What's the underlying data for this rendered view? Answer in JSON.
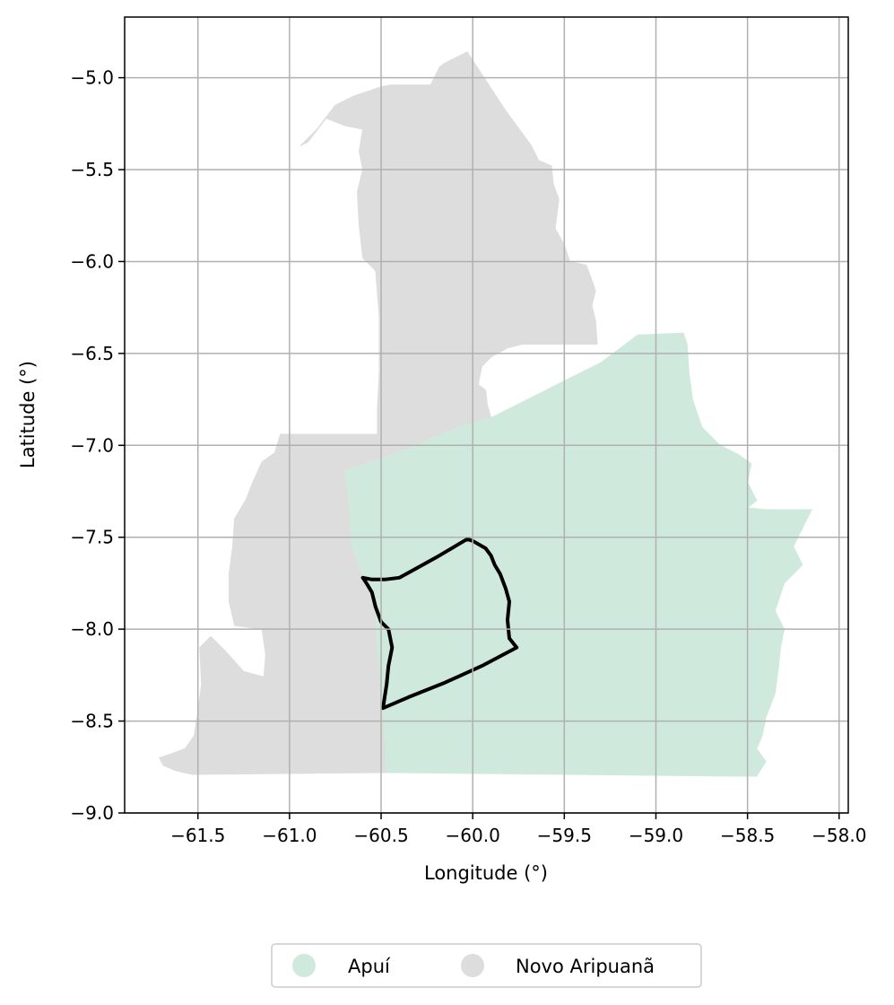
{
  "chart_data": {
    "type": "map",
    "title": "",
    "xlabel": "Longitude (°)",
    "ylabel": "Latitude (°)",
    "xlim": [
      -61.9,
      -57.95
    ],
    "ylim": [
      -9.0,
      -4.67
    ],
    "xticks": [
      -61.5,
      -61.0,
      -60.5,
      -60.0,
      -59.5,
      -59.0,
      -58.5,
      -58.0
    ],
    "xtick_labels": [
      "−61.5",
      "−61.0",
      "−60.5",
      "−60.0",
      "−59.5",
      "−59.0",
      "−58.5",
      "−58.0"
    ],
    "yticks": [
      -5.0,
      -5.5,
      -6.0,
      -6.5,
      -7.0,
      -7.5,
      -8.0,
      -8.5,
      -9.0
    ],
    "ytick_labels": [
      "−5.0",
      "−5.5",
      "−6.0",
      "−6.5",
      "−7.0",
      "−7.5",
      "−8.0",
      "−8.5",
      "−9.0"
    ],
    "grid": true,
    "legend_position": "bottom-center",
    "regions": [
      {
        "name": "Novo Aripuanã",
        "color": "#dddddd",
        "polygon": [
          [
            -60.45,
            -5.04
          ],
          [
            -60.36,
            -5.04
          ],
          [
            -60.23,
            -5.04
          ],
          [
            -60.18,
            -4.94
          ],
          [
            -60.15,
            -4.92
          ],
          [
            -60.03,
            -4.86
          ],
          [
            -59.82,
            -5.18
          ],
          [
            -59.68,
            -5.37
          ],
          [
            -59.64,
            -5.45
          ],
          [
            -59.57,
            -5.48
          ],
          [
            -59.56,
            -5.58
          ],
          [
            -59.53,
            -5.66
          ],
          [
            -59.55,
            -5.82
          ],
          [
            -59.5,
            -5.91
          ],
          [
            -59.47,
            -6.0
          ],
          [
            -59.38,
            -6.02
          ],
          [
            -59.35,
            -6.1
          ],
          [
            -59.33,
            -6.16
          ],
          [
            -59.35,
            -6.24
          ],
          [
            -59.33,
            -6.32
          ],
          [
            -59.32,
            -6.45
          ],
          [
            -59.73,
            -6.45
          ],
          [
            -59.81,
            -6.47
          ],
          [
            -59.9,
            -6.52
          ],
          [
            -59.95,
            -6.57
          ],
          [
            -59.97,
            -6.67
          ],
          [
            -59.93,
            -6.7
          ],
          [
            -59.92,
            -6.78
          ],
          [
            -59.9,
            -6.85
          ],
          [
            -60.05,
            -6.89
          ],
          [
            -60.2,
            -6.95
          ],
          [
            -60.35,
            -7.02
          ],
          [
            -60.52,
            -7.08
          ],
          [
            -60.7,
            -7.14
          ],
          [
            -60.68,
            -7.25
          ],
          [
            -60.67,
            -7.4
          ],
          [
            -60.66,
            -7.55
          ],
          [
            -60.6,
            -7.7
          ],
          [
            -60.53,
            -7.9
          ],
          [
            -60.52,
            -8.1
          ],
          [
            -60.5,
            -8.3
          ],
          [
            -60.49,
            -8.45
          ],
          [
            -60.48,
            -8.6
          ],
          [
            -60.47,
            -8.78
          ],
          [
            -61.53,
            -8.79
          ],
          [
            -61.62,
            -8.77
          ],
          [
            -61.69,
            -8.74
          ],
          [
            -61.71,
            -8.7
          ],
          [
            -61.65,
            -8.68
          ],
          [
            -61.57,
            -8.65
          ],
          [
            -61.52,
            -8.58
          ],
          [
            -61.5,
            -8.45
          ],
          [
            -61.48,
            -8.3
          ],
          [
            -61.49,
            -8.1
          ],
          [
            -61.43,
            -8.04
          ],
          [
            -61.35,
            -8.12
          ],
          [
            -61.25,
            -8.23
          ],
          [
            -61.14,
            -8.26
          ],
          [
            -61.13,
            -8.14
          ],
          [
            -61.15,
            -8.0
          ],
          [
            -61.3,
            -7.98
          ],
          [
            -61.33,
            -7.85
          ],
          [
            -61.33,
            -7.7
          ],
          [
            -61.31,
            -7.55
          ],
          [
            -61.3,
            -7.4
          ],
          [
            -61.24,
            -7.3
          ],
          [
            -61.2,
            -7.2
          ],
          [
            -61.15,
            -7.09
          ],
          [
            -61.08,
            -7.04
          ],
          [
            -61.05,
            -6.94
          ],
          [
            -60.85,
            -6.94
          ],
          [
            -60.75,
            -6.94
          ],
          [
            -60.52,
            -6.94
          ],
          [
            -60.52,
            -6.8
          ],
          [
            -60.51,
            -6.6
          ],
          [
            -60.51,
            -6.3
          ],
          [
            -60.53,
            -6.05
          ],
          [
            -60.6,
            -5.98
          ],
          [
            -60.62,
            -5.8
          ],
          [
            -60.63,
            -5.62
          ],
          [
            -60.6,
            -5.5
          ],
          [
            -60.62,
            -5.4
          ],
          [
            -60.6,
            -5.28
          ],
          [
            -60.7,
            -5.26
          ],
          [
            -60.8,
            -5.22
          ],
          [
            -60.9,
            -5.35
          ],
          [
            -60.94,
            -5.37
          ],
          [
            -60.85,
            -5.28
          ],
          [
            -60.75,
            -5.15
          ],
          [
            -60.65,
            -5.1
          ],
          [
            -60.5,
            -5.05
          ]
        ]
      },
      {
        "name": "Apuí",
        "color": "#cfeadd",
        "polygon": [
          [
            -60.7,
            -7.14
          ],
          [
            -60.52,
            -7.08
          ],
          [
            -60.35,
            -7.02
          ],
          [
            -60.2,
            -6.95
          ],
          [
            -60.05,
            -6.89
          ],
          [
            -59.9,
            -6.85
          ],
          [
            -59.7,
            -6.75
          ],
          [
            -59.5,
            -6.65
          ],
          [
            -59.3,
            -6.55
          ],
          [
            -59.1,
            -6.4
          ],
          [
            -58.85,
            -6.39
          ],
          [
            -58.83,
            -6.45
          ],
          [
            -58.82,
            -6.6
          ],
          [
            -58.8,
            -6.75
          ],
          [
            -58.75,
            -6.9
          ],
          [
            -58.65,
            -7.0
          ],
          [
            -58.55,
            -7.05
          ],
          [
            -58.48,
            -7.1
          ],
          [
            -58.5,
            -7.2
          ],
          [
            -58.45,
            -7.3
          ],
          [
            -58.5,
            -7.34
          ],
          [
            -58.4,
            -7.35
          ],
          [
            -58.15,
            -7.35
          ],
          [
            -58.2,
            -7.45
          ],
          [
            -58.25,
            -7.55
          ],
          [
            -58.2,
            -7.65
          ],
          [
            -58.3,
            -7.75
          ],
          [
            -58.35,
            -7.9
          ],
          [
            -58.3,
            -8.0
          ],
          [
            -58.32,
            -8.1
          ],
          [
            -58.33,
            -8.2
          ],
          [
            -58.35,
            -8.35
          ],
          [
            -58.4,
            -8.48
          ],
          [
            -58.42,
            -8.58
          ],
          [
            -58.45,
            -8.65
          ],
          [
            -58.4,
            -8.72
          ],
          [
            -58.45,
            -8.8
          ],
          [
            -58.55,
            -8.8
          ],
          [
            -60.47,
            -8.78
          ],
          [
            -60.48,
            -8.6
          ],
          [
            -60.49,
            -8.45
          ],
          [
            -60.5,
            -8.3
          ],
          [
            -60.52,
            -8.1
          ],
          [
            -60.53,
            -7.9
          ],
          [
            -60.6,
            -7.7
          ],
          [
            -60.66,
            -7.55
          ],
          [
            -60.67,
            -7.4
          ],
          [
            -60.68,
            -7.25
          ]
        ]
      }
    ],
    "outline": {
      "color": "#000000",
      "polygon": [
        [
          -60.03,
          -7.51
        ],
        [
          -60.0,
          -7.52
        ],
        [
          -59.93,
          -7.56
        ],
        [
          -59.9,
          -7.6
        ],
        [
          -59.88,
          -7.65
        ],
        [
          -59.85,
          -7.7
        ],
        [
          -59.82,
          -7.78
        ],
        [
          -59.8,
          -7.85
        ],
        [
          -59.81,
          -7.95
        ],
        [
          -59.8,
          -8.05
        ],
        [
          -59.76,
          -8.1
        ],
        [
          -59.95,
          -8.2
        ],
        [
          -60.15,
          -8.29
        ],
        [
          -60.35,
          -8.37
        ],
        [
          -60.49,
          -8.43
        ],
        [
          -60.47,
          -8.3
        ],
        [
          -60.46,
          -8.2
        ],
        [
          -60.44,
          -8.1
        ],
        [
          -60.46,
          -8.0
        ],
        [
          -60.5,
          -7.96
        ],
        [
          -60.53,
          -7.88
        ],
        [
          -60.55,
          -7.8
        ],
        [
          -60.58,
          -7.75
        ],
        [
          -60.6,
          -7.72
        ],
        [
          -60.55,
          -7.73
        ],
        [
          -60.48,
          -7.73
        ],
        [
          -60.4,
          -7.72
        ],
        [
          -60.2,
          -7.61
        ]
      ]
    },
    "legend": [
      {
        "label": "Apuí",
        "color": "#cfeadd"
      },
      {
        "label": "Novo Aripuanã",
        "color": "#dddddd"
      }
    ]
  }
}
